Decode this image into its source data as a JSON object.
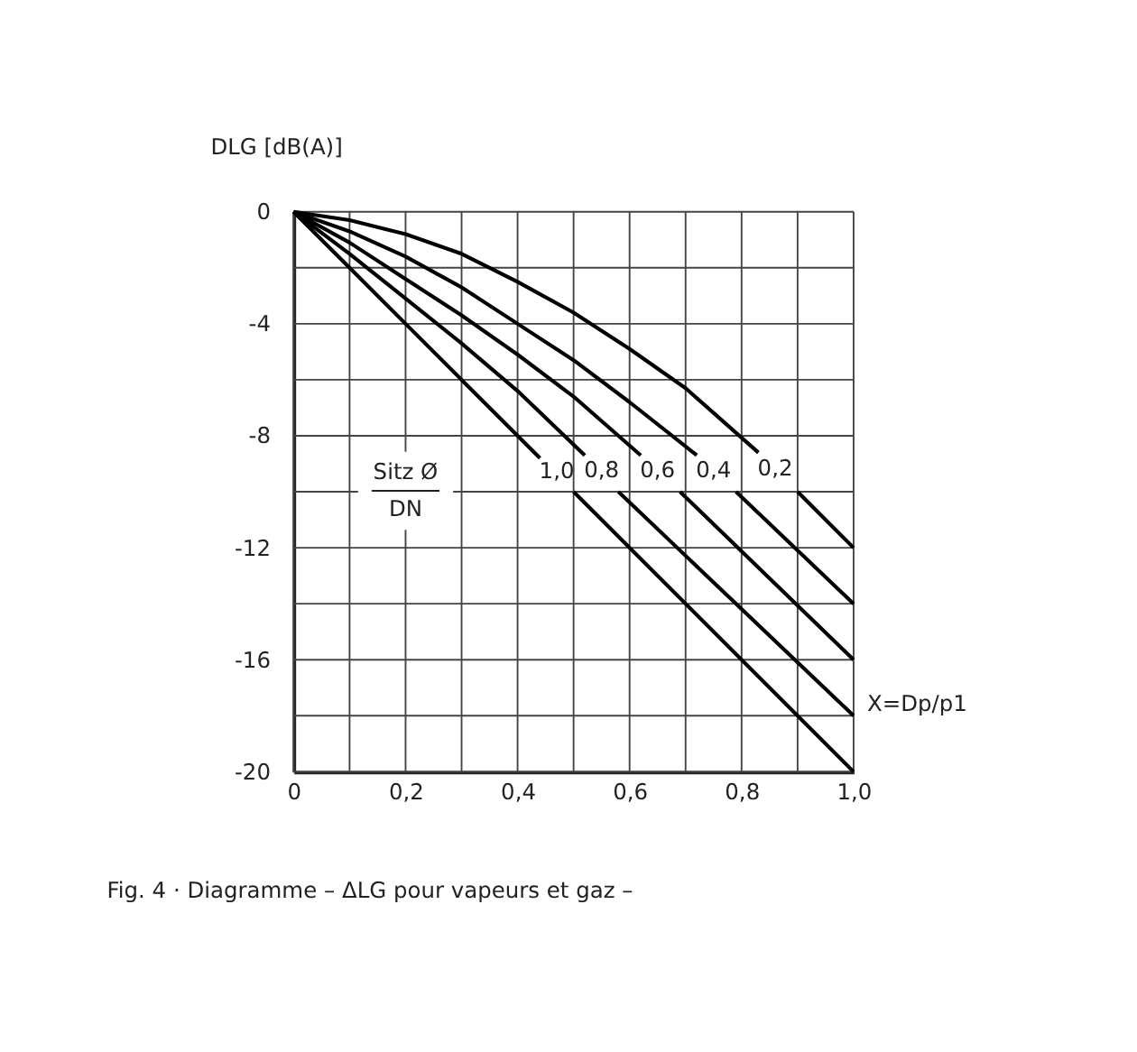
{
  "chart_data": {
    "type": "line",
    "ylabel": "DLG [dB(A)]",
    "xlabel": "X=Dp/p1",
    "legend_title": "Sitz Ø\nDN",
    "annotations": [
      "Fig. 4 · Diagramme – ΔLG pour vapeurs et gaz –"
    ],
    "xlim": [
      0,
      1.0
    ],
    "ylim": [
      -20,
      0
    ],
    "xticks": [
      0,
      {
        "value": 0.1,
        "label": null
      },
      {
        "value": 0.2,
        "label": "0,2"
      },
      {
        "value": 0.3,
        "label": null
      },
      {
        "value": 0.4,
        "label": "0,4"
      },
      {
        "value": 0.5,
        "label": null
      },
      {
        "value": 0.6,
        "label": "0,6"
      },
      {
        "value": 0.7,
        "label": null
      },
      {
        "value": 0.8,
        "label": "0,8"
      },
      {
        "value": 0.9,
        "label": null
      },
      {
        "value": 1.0,
        "label": "1,0"
      }
    ],
    "yticks": [
      -20,
      {
        "value": -18,
        "label": null
      },
      -16,
      {
        "value": -14,
        "label": null
      },
      -12,
      {
        "value": -10,
        "label": null
      },
      -8,
      {
        "value": -6,
        "label": null
      },
      -4,
      {
        "value": -2,
        "label": null
      },
      0
    ],
    "grid": true,
    "legend": false,
    "line_style": "solid",
    "marker": "none",
    "series": [
      {
        "name": "1,0",
        "color": "#000000",
        "x": [
          0,
          0.1,
          0.2,
          0.3,
          0.44,
          0.47,
          0.5,
          1.0
        ],
        "values": [
          0,
          -2,
          -4,
          -6,
          -8.8,
          null,
          -10,
          -20
        ]
      },
      {
        "name": "0,8",
        "color": "#000000",
        "x": [
          0,
          0.1,
          0.2,
          0.3,
          0.4,
          0.52,
          0.55,
          0.58,
          1.0
        ],
        "values": [
          0,
          -1.5,
          -3.1,
          -4.7,
          -6.4,
          -8.7,
          null,
          -10,
          -18
        ]
      },
      {
        "name": "0,6",
        "color": "#000000",
        "x": [
          0,
          0.1,
          0.2,
          0.3,
          0.4,
          0.5,
          0.62,
          0.65,
          0.69,
          1.0
        ],
        "values": [
          0,
          -1.1,
          -2.4,
          -3.7,
          -5.1,
          -6.6,
          -8.7,
          null,
          -10,
          -16
        ]
      },
      {
        "name": "0,4",
        "color": "#000000",
        "x": [
          0,
          0.1,
          0.2,
          0.3,
          0.4,
          0.5,
          0.6,
          0.72,
          0.75,
          0.79,
          1.0
        ],
        "values": [
          0,
          -0.7,
          -1.6,
          -2.7,
          -4.0,
          -5.3,
          -6.8,
          -8.7,
          null,
          -10,
          -14
        ]
      },
      {
        "name": "0,2",
        "color": "#000000",
        "x": [
          0,
          0.1,
          0.2,
          0.3,
          0.4,
          0.5,
          0.6,
          0.7,
          0.83,
          0.86,
          0.9,
          1.0
        ],
        "values": [
          0,
          -0.3,
          -0.8,
          -1.5,
          -2.5,
          -3.6,
          -4.9,
          -6.3,
          -8.6,
          null,
          -10,
          -12
        ]
      }
    ]
  }
}
